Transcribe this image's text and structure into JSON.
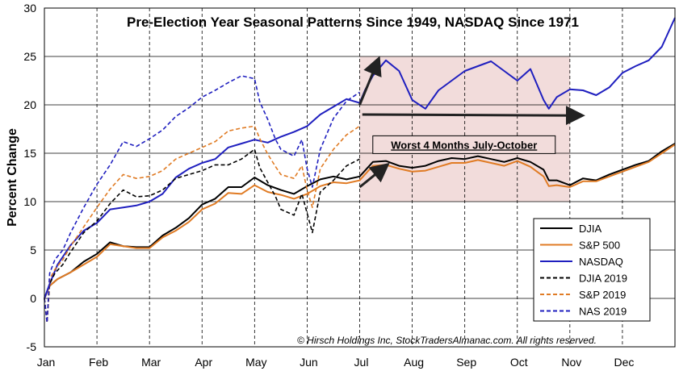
{
  "chart_data": {
    "type": "line",
    "title": "Pre-Election Year Seasonal Patterns Since 1949, NASDAQ Since 1971",
    "xlabel": "",
    "ylabel": "Percent Change",
    "ylim": [
      -5,
      30
    ],
    "yticks": [
      -5,
      0,
      5,
      10,
      15,
      20,
      25,
      30
    ],
    "xlim": [
      0,
      12
    ],
    "months": [
      "Jan",
      "Feb",
      "Mar",
      "Apr",
      "May",
      "Jun",
      "Jul",
      "Aug",
      "Sep",
      "Oct",
      "Nov",
      "Dec"
    ],
    "grid": true,
    "legend_position": "bottom-right",
    "highlight": {
      "x_range": [
        6,
        10
      ],
      "y_range": [
        10,
        25
      ],
      "label": "Worst 4 Months July-October",
      "color": "#f2dcdb"
    },
    "copyright": "© Hirsch Holdings Inc, StockTradersAlmanac.com. All rights reserved.",
    "series": [
      {
        "name": "DJIA",
        "color": "#000000",
        "dash": "solid",
        "width": 2,
        "x": [
          0,
          0.1,
          0.25,
          0.5,
          0.75,
          1,
          1.25,
          1.5,
          1.75,
          2,
          2.25,
          2.5,
          2.75,
          3,
          3.25,
          3.5,
          3.75,
          4,
          4.25,
          4.5,
          4.75,
          5,
          5.25,
          5.5,
          5.75,
          6,
          6.25,
          6.5,
          6.75,
          7,
          7.25,
          7.5,
          7.75,
          8,
          8.25,
          8.5,
          8.75,
          9,
          9.25,
          9.5,
          9.6,
          9.75,
          10,
          10.25,
          10.5,
          10.75,
          11,
          11.25,
          11.5,
          11.75,
          12
        ],
        "y": [
          0,
          1.3,
          2,
          2.7,
          3.8,
          4.6,
          5.8,
          5.4,
          5.3,
          5.3,
          6.5,
          7.3,
          8.3,
          9.7,
          10.3,
          11.5,
          11.5,
          12.5,
          11.7,
          11.2,
          10.8,
          11.6,
          12.3,
          12.6,
          12.3,
          12.6,
          14.1,
          14.2,
          13.7,
          13.5,
          13.7,
          14.2,
          14.5,
          14.4,
          14.7,
          14.4,
          14.1,
          14.5,
          14.1,
          13.3,
          12.2,
          12.2,
          11.7,
          12.4,
          12.2,
          12.8,
          13.3,
          13.8,
          14.2,
          15.2,
          16
        ]
      },
      {
        "name": "S&P 500",
        "color": "#e07b24",
        "dash": "solid",
        "width": 2,
        "x": [
          0,
          0.1,
          0.25,
          0.5,
          0.75,
          1,
          1.25,
          1.5,
          1.75,
          2,
          2.25,
          2.5,
          2.75,
          3,
          3.25,
          3.5,
          3.75,
          4,
          4.25,
          4.5,
          4.75,
          5,
          5.25,
          5.5,
          5.75,
          6,
          6.25,
          6.5,
          6.75,
          7,
          7.25,
          7.5,
          7.75,
          8,
          8.25,
          8.5,
          8.75,
          9,
          9.25,
          9.5,
          9.6,
          9.75,
          10,
          10.25,
          10.5,
          10.75,
          11,
          11.25,
          11.5,
          11.75,
          12
        ],
        "y": [
          0,
          1.3,
          2,
          2.7,
          3.5,
          4.3,
          5.6,
          5.4,
          5.2,
          5.2,
          6.3,
          7,
          7.9,
          9.2,
          9.8,
          10.9,
          10.8,
          11.7,
          11,
          10.7,
          10.3,
          10.8,
          11.6,
          12,
          11.9,
          12.2,
          13.7,
          13.8,
          13.4,
          13.1,
          13.2,
          13.6,
          14,
          14,
          14.3,
          14,
          13.7,
          14.2,
          13.6,
          12.6,
          11.6,
          11.7,
          11.5,
          12.1,
          12.1,
          12.6,
          13.1,
          13.6,
          14.1,
          15,
          15.9
        ]
      },
      {
        "name": "NASDAQ",
        "color": "#1f1fbf",
        "dash": "solid",
        "width": 2,
        "x": [
          0,
          0.1,
          0.25,
          0.5,
          0.75,
          1,
          1.25,
          1.5,
          1.75,
          2,
          2.25,
          2.5,
          2.75,
          3,
          3.25,
          3.5,
          3.75,
          4,
          4.25,
          4.5,
          4.75,
          5,
          5.25,
          5.5,
          5.75,
          6,
          6.1,
          6.25,
          6.5,
          6.75,
          7,
          7.25,
          7.5,
          7.75,
          8,
          8.25,
          8.5,
          8.75,
          9,
          9.25,
          9.5,
          9.6,
          9.75,
          10,
          10.25,
          10.5,
          10.75,
          11,
          11.25,
          11.5,
          11.75,
          12
        ],
        "y": [
          0,
          1.5,
          3.5,
          5.5,
          7,
          7.8,
          9.2,
          9.4,
          9.6,
          10,
          10.8,
          12.5,
          13.4,
          14,
          14.4,
          15.6,
          16,
          16.4,
          16.1,
          16.7,
          17.2,
          17.8,
          19,
          19.8,
          20.6,
          20.2,
          21.5,
          23,
          24.6,
          23.5,
          20.5,
          19.6,
          21.5,
          22.5,
          23.5,
          24,
          24.5,
          23.5,
          22.5,
          23.7,
          20.5,
          19.6,
          20.8,
          21.6,
          21.5,
          21,
          21.8,
          23.3,
          24,
          24.6,
          26,
          29
        ]
      },
      {
        "name": "DJIA 2019",
        "color": "#000000",
        "dash": "dashed",
        "width": 1.6,
        "x": [
          0,
          0.05,
          0.1,
          0.2,
          0.35,
          0.5,
          0.75,
          1,
          1.25,
          1.5,
          1.75,
          2,
          2.25,
          2.5,
          2.75,
          3,
          3.25,
          3.5,
          3.75,
          4,
          4.1,
          4.25,
          4.4,
          4.5,
          4.75,
          4.9,
          5,
          5.1,
          5.25,
          5.5,
          5.75,
          6
        ],
        "y": [
          0,
          -2.5,
          1.5,
          2.6,
          3.5,
          4.8,
          6.8,
          8,
          9.8,
          11.2,
          10.5,
          10.6,
          11.2,
          12.4,
          12.8,
          13.2,
          13.8,
          13.8,
          14.4,
          15.4,
          13.5,
          12,
          10.5,
          9.2,
          8.6,
          10.8,
          8.8,
          6.8,
          11,
          12.2,
          13.7,
          14.4
        ]
      },
      {
        "name": "S&P 2019",
        "color": "#e07b24",
        "dash": "dashed",
        "width": 1.6,
        "x": [
          0,
          0.05,
          0.1,
          0.2,
          0.35,
          0.5,
          0.75,
          1,
          1.25,
          1.5,
          1.75,
          2,
          2.25,
          2.5,
          2.75,
          3,
          3.25,
          3.5,
          3.75,
          4,
          4.1,
          4.25,
          4.4,
          4.5,
          4.75,
          4.9,
          5,
          5.1,
          5.25,
          5.5,
          5.75,
          6
        ],
        "y": [
          0,
          -2.5,
          2,
          3,
          4,
          5.4,
          7.4,
          9.4,
          11.3,
          12.8,
          12.4,
          12.6,
          13.2,
          14.4,
          15,
          15.6,
          16.2,
          17.3,
          17.6,
          17.8,
          16.5,
          14.9,
          13.6,
          12.8,
          12.4,
          13.7,
          11.2,
          9.4,
          13.4,
          15.4,
          16.9,
          17.8
        ]
      },
      {
        "name": "NAS 2019",
        "color": "#1f1fbf",
        "dash": "dashed",
        "width": 1.6,
        "x": [
          0,
          0.05,
          0.1,
          0.2,
          0.35,
          0.5,
          0.75,
          1,
          1.25,
          1.5,
          1.75,
          2,
          2.25,
          2.5,
          2.75,
          3,
          3.25,
          3.5,
          3.75,
          4,
          4.1,
          4.25,
          4.4,
          4.5,
          4.75,
          4.9,
          5,
          5.1,
          5.25,
          5.5,
          5.75,
          6
        ],
        "y": [
          0,
          -2.5,
          2.6,
          4,
          5,
          6.8,
          9.4,
          11.8,
          13.8,
          16.2,
          15.7,
          16.5,
          17.4,
          18.8,
          19.7,
          20.8,
          21.5,
          22.3,
          23,
          22.7,
          20.3,
          18.5,
          16.4,
          15.4,
          14.7,
          16.4,
          13.4,
          11.5,
          15.4,
          18.6,
          20.4,
          21.3
        ]
      }
    ]
  }
}
